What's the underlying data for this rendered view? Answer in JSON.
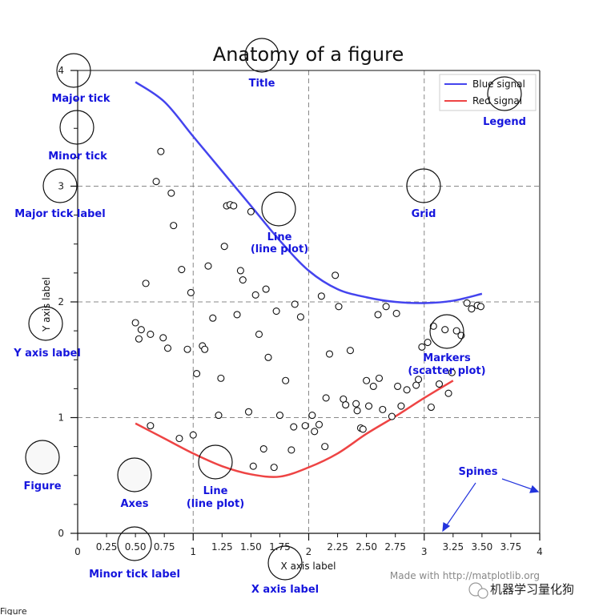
{
  "chart_data": {
    "type": "scatter",
    "title": "Anatomy of a figure",
    "xlabel": "X axis label",
    "ylabel": "Y axis label",
    "xlim": [
      0,
      4
    ],
    "ylim": [
      0,
      4
    ],
    "grid": true,
    "legend_position": "top-right",
    "x_major_ticks": [
      0,
      1,
      2,
      3,
      4
    ],
    "x_major_tick_labels": [
      "0",
      "1",
      "2",
      "3",
      "4"
    ],
    "x_minor_ticks": [
      0.25,
      0.5,
      0.75,
      1.25,
      1.5,
      1.75,
      2.25,
      2.5,
      2.75,
      3.25,
      3.5,
      3.75
    ],
    "x_minor_tick_labels": [
      "0.25",
      "0.50",
      "0.75",
      "1.25",
      "1.50",
      "1.75",
      "2.25",
      "2.50",
      "2.75",
      "3.25",
      "3.50",
      "3.75"
    ],
    "y_major_ticks": [
      0,
      1,
      2,
      3,
      4
    ],
    "y_major_tick_labels": [
      "0",
      "1",
      "2",
      "3",
      "4"
    ],
    "y_minor_ticks": [
      0.25,
      0.5,
      0.75,
      1.25,
      1.5,
      1.75,
      2.25,
      2.5,
      2.75,
      3.25,
      3.5,
      3.75
    ],
    "series": [
      {
        "name": "Blue signal",
        "kind": "line",
        "color": "#4444ee",
        "x": [
          0.5,
          0.75,
          1.0,
          1.25,
          1.5,
          1.75,
          2.0,
          2.25,
          2.5,
          2.75,
          3.0,
          3.25,
          3.5
        ],
        "y": [
          3.9,
          3.73,
          3.43,
          3.13,
          2.83,
          2.53,
          2.27,
          2.11,
          2.04,
          2.0,
          1.99,
          2.01,
          2.07
        ]
      },
      {
        "name": "Red signal",
        "kind": "line",
        "color": "#ee4444",
        "x": [
          0.5,
          0.75,
          1.0,
          1.25,
          1.5,
          1.75,
          2.0,
          2.25,
          2.5,
          2.75,
          3.0,
          3.25
        ],
        "y": [
          0.95,
          0.82,
          0.69,
          0.58,
          0.51,
          0.49,
          0.57,
          0.69,
          0.86,
          1.01,
          1.17,
          1.32
        ]
      },
      {
        "name": "Markers",
        "kind": "scatter",
        "x": [
          0.72,
          0.68,
          0.81,
          0.83,
          0.59,
          0.5,
          0.53,
          0.55,
          0.63,
          0.74,
          0.78,
          0.9,
          0.95,
          0.98,
          1.03,
          1.08,
          1.1,
          1.13,
          1.17,
          1.22,
          1.24,
          1.27,
          1.29,
          1.32,
          1.35,
          1.38,
          1.41,
          1.43,
          1.5,
          1.54,
          1.57,
          1.63,
          1.65,
          1.72,
          1.75,
          1.8,
          1.85,
          1.88,
          1.93,
          1.97,
          2.03,
          2.05,
          2.11,
          2.14,
          2.18,
          2.23,
          2.26,
          2.3,
          2.32,
          2.36,
          2.41,
          2.45,
          2.5,
          2.52,
          2.56,
          2.6,
          2.64,
          2.67,
          2.72,
          2.76,
          2.8,
          2.85,
          2.93,
          2.98,
          3.03,
          3.08,
          3.13,
          3.18,
          3.21,
          3.24,
          3.28,
          3.32,
          3.37,
          3.41,
          3.46,
          3.49,
          1.52,
          1.7,
          1.87,
          2.09,
          2.42,
          0.63,
          0.88,
          1.0,
          1.48,
          1.61,
          2.15,
          2.47,
          2.61,
          2.77,
          2.95,
          3.06
        ],
        "y": [
          3.3,
          3.04,
          2.94,
          2.66,
          2.16,
          1.82,
          1.68,
          1.76,
          1.72,
          1.69,
          1.6,
          2.28,
          1.59,
          2.08,
          1.38,
          1.62,
          1.59,
          2.31,
          1.86,
          1.02,
          1.34,
          2.48,
          2.83,
          2.84,
          2.83,
          1.89,
          2.27,
          2.19,
          2.78,
          2.06,
          1.72,
          2.11,
          1.52,
          1.92,
          1.02,
          1.32,
          0.72,
          1.98,
          1.87,
          0.93,
          1.02,
          0.88,
          2.05,
          0.75,
          1.55,
          2.23,
          1.96,
          1.16,
          1.11,
          1.58,
          1.12,
          0.91,
          1.32,
          1.1,
          1.27,
          1.89,
          1.07,
          1.96,
          1.01,
          1.9,
          1.1,
          1.24,
          1.28,
          1.61,
          1.65,
          1.79,
          1.29,
          1.76,
          1.21,
          1.39,
          1.75,
          1.71,
          1.99,
          1.94,
          1.97,
          1.96,
          0.58,
          0.57,
          0.92,
          0.94,
          1.06,
          0.93,
          0.82,
          0.85,
          1.05,
          0.73,
          1.17,
          0.9,
          1.34,
          1.27,
          1.33,
          1.09
        ]
      }
    ]
  },
  "annotations": {
    "major_tick": "Major tick",
    "minor_tick": "Minor tick",
    "major_tick_label": "Major tick label",
    "y_axis_label": "Y axis label",
    "figure": "Figure",
    "axes": "Axes",
    "title": "Title",
    "line_plot_1a": "Line",
    "line_plot_1b": "(line plot)",
    "line_plot_2a": "Line",
    "line_plot_2b": "(line plot)",
    "markers_a": "Markers",
    "markers_b": "(scatter plot)",
    "grid": "Grid",
    "legend": "Legend",
    "spines": "Spines",
    "minor_tick_label": "Minor tick label",
    "x_axis_label": "X axis label"
  },
  "footer": {
    "made_with": "Made with http://matplotlib.org",
    "wechat": "机器学习量化狗",
    "figure_caption": "Figure"
  },
  "colors": {
    "callout_text": "#1515dd",
    "blue_signal": "#4444ee",
    "red_signal": "#ee4444",
    "grid": "#888888"
  }
}
